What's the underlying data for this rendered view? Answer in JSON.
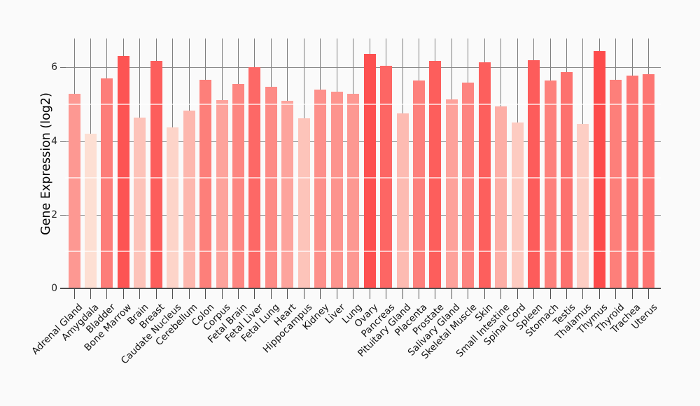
{
  "chart_data": {
    "type": "bar",
    "title": "",
    "xlabel": "",
    "ylabel": "Gene Expression (log2)",
    "categories": [
      "Adrenal Gland",
      "Amygdala",
      "Bladder",
      "Bone Marrow",
      "Brain",
      "Breast",
      "Caudate Nucleus",
      "Cerebellum",
      "Colon",
      "Corpus",
      "Fetal Brain",
      "Fetal Liver",
      "Fetal Lung",
      "Heart",
      "Hippocampus",
      "Kidney",
      "Liver",
      "Lung",
      "Ovary",
      "Pancreas",
      "Pituitary Gland",
      "Placenta",
      "Prostate",
      "Salivary Gland",
      "Skeletal Muscle",
      "Skin",
      "Small Intestine",
      "Spinal Cord",
      "Spleen",
      "Stomach",
      "Testis",
      "Thalamus",
      "Thymus",
      "Thyroid",
      "Trachea",
      "Uterus"
    ],
    "values": [
      5.28,
      4.21,
      5.7,
      6.32,
      4.64,
      6.17,
      4.38,
      4.82,
      5.67,
      5.12,
      5.56,
      6.01,
      5.48,
      5.1,
      4.62,
      5.4,
      5.35,
      5.28,
      6.37,
      6.04,
      4.75,
      5.65,
      6.17,
      5.13,
      5.58,
      6.15,
      4.95,
      4.51,
      6.19,
      5.64,
      5.87,
      4.46,
      6.45,
      5.67,
      5.78,
      5.81
    ],
    "ylim": [
      0,
      6.8
    ],
    "yticks_major": [
      0,
      2,
      4,
      6
    ],
    "yticks_minor_white": [
      1,
      3,
      5
    ],
    "ytick_labels": [
      "0",
      "2",
      "4",
      "6"
    ],
    "grid": "major horizontal gray behind bars, white minor over bars, vertical gray line at each category center",
    "legend": "none",
    "colors": {
      "background": "#fafafa",
      "bar_scale_low": "#fddfd3",
      "bar_scale_high": "#fd4b4b",
      "bar_scale_domain": [
        4.21,
        6.45
      ],
      "gridline": "#8a8a8a",
      "category_line": "#7f7f7f",
      "axis_line": "#4f4f4f",
      "tick_label": "#262626",
      "category_label": "#111111"
    }
  }
}
